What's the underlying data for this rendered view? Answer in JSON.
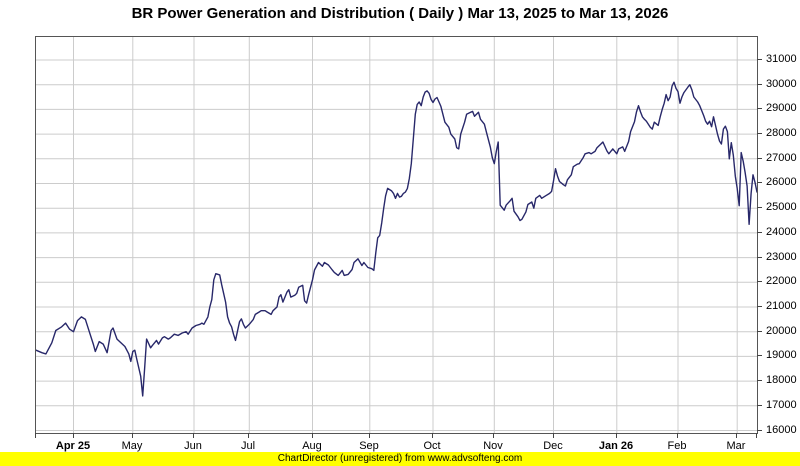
{
  "title": "BR Power Generation and Distribution ( Daily ) Mar 13, 2025 to Mar 13, 2026",
  "footer": {
    "text": "ChartDirector (unregistered) from www.advsofteng.com",
    "background": "#ffff00"
  },
  "chart_data": {
    "type": "line",
    "title": "BR Power Generation and Distribution ( Daily ) Mar 13, 2025 to Mar 13, 2026",
    "xlabel": "",
    "ylabel": "",
    "x_range_days": [
      "Mar 13, 2025",
      "Mar 13, 2026"
    ],
    "grid": true,
    "legend": "none",
    "colors": {
      "line": "#28286a",
      "gridline": "#cccccc",
      "axis": "#444444",
      "plot_background": "#ffffff"
    },
    "y_axis": {
      "position": "right",
      "min": 15900,
      "max": 31930,
      "tick_start": 16000,
      "tick_end": 31000,
      "tick_step": 1000
    },
    "x_axis": {
      "total_days": 365,
      "ticks": [
        {
          "label": "",
          "day": 0,
          "bold": false
        },
        {
          "label": "Apr 25",
          "day": 19,
          "bold": true
        },
        {
          "label": "May",
          "day": 49,
          "bold": false
        },
        {
          "label": "Jun",
          "day": 80,
          "bold": false
        },
        {
          "label": "Jul",
          "day": 108,
          "bold": false
        },
        {
          "label": "Aug",
          "day": 140,
          "bold": false
        },
        {
          "label": "Sep",
          "day": 169,
          "bold": false
        },
        {
          "label": "Oct",
          "day": 201,
          "bold": false
        },
        {
          "label": "Nov",
          "day": 232,
          "bold": false
        },
        {
          "label": "Dec",
          "day": 262,
          "bold": false
        },
        {
          "label": "Jan 26",
          "day": 294,
          "bold": true
        },
        {
          "label": "Feb",
          "day": 325,
          "bold": false
        },
        {
          "label": "Mar",
          "day": 355,
          "bold": false
        },
        {
          "label": "",
          "day": 365,
          "bold": false
        }
      ]
    },
    "series": [
      {
        "name": "BR Power Generation and Distribution",
        "points": [
          [
            0,
            19250
          ],
          [
            3,
            19150
          ],
          [
            5,
            19100
          ],
          [
            8,
            19550
          ],
          [
            10,
            20050
          ],
          [
            13,
            20200
          ],
          [
            15,
            20350
          ],
          [
            17,
            20100
          ],
          [
            19,
            20000
          ],
          [
            21,
            20450
          ],
          [
            23,
            20600
          ],
          [
            25,
            20500
          ],
          [
            27,
            20000
          ],
          [
            29,
            19500
          ],
          [
            30,
            19200
          ],
          [
            32,
            19600
          ],
          [
            34,
            19500
          ],
          [
            36,
            19150
          ],
          [
            38,
            20050
          ],
          [
            39,
            20150
          ],
          [
            41,
            19700
          ],
          [
            43,
            19550
          ],
          [
            45,
            19400
          ],
          [
            47,
            19100
          ],
          [
            48,
            18800
          ],
          [
            49,
            19200
          ],
          [
            50,
            19250
          ],
          [
            51,
            18900
          ],
          [
            53,
            18200
          ],
          [
            54,
            17400
          ],
          [
            55,
            18500
          ],
          [
            56,
            19700
          ],
          [
            58,
            19350
          ],
          [
            59,
            19450
          ],
          [
            61,
            19650
          ],
          [
            62,
            19500
          ],
          [
            64,
            19750
          ],
          [
            65,
            19800
          ],
          [
            67,
            19700
          ],
          [
            68,
            19750
          ],
          [
            70,
            19900
          ],
          [
            72,
            19850
          ],
          [
            74,
            19950
          ],
          [
            76,
            20000
          ],
          [
            77,
            19900
          ],
          [
            79,
            20150
          ],
          [
            81,
            20250
          ],
          [
            83,
            20300
          ],
          [
            84,
            20350
          ],
          [
            85,
            20300
          ],
          [
            87,
            20600
          ],
          [
            88,
            21000
          ],
          [
            89,
            21300
          ],
          [
            90,
            22100
          ],
          [
            91,
            22350
          ],
          [
            93,
            22300
          ],
          [
            94,
            21900
          ],
          [
            96,
            21200
          ],
          [
            97,
            20600
          ],
          [
            98,
            20350
          ],
          [
            99,
            20200
          ],
          [
            100,
            19900
          ],
          [
            101,
            19650
          ],
          [
            103,
            20400
          ],
          [
            104,
            20520
          ],
          [
            105,
            20300
          ],
          [
            106,
            20150
          ],
          [
            108,
            20300
          ],
          [
            110,
            20500
          ],
          [
            111,
            20700
          ],
          [
            113,
            20800
          ],
          [
            114,
            20850
          ],
          [
            116,
            20850
          ],
          [
            117,
            20800
          ],
          [
            119,
            20700
          ],
          [
            120,
            20850
          ],
          [
            122,
            21000
          ],
          [
            123,
            21400
          ],
          [
            124,
            21500
          ],
          [
            125,
            21200
          ],
          [
            127,
            21600
          ],
          [
            128,
            21700
          ],
          [
            129,
            21400
          ],
          [
            131,
            21480
          ],
          [
            132,
            21550
          ],
          [
            133,
            21800
          ],
          [
            135,
            21880
          ],
          [
            136,
            21250
          ],
          [
            137,
            21160
          ],
          [
            138,
            21500
          ],
          [
            140,
            22100
          ],
          [
            141,
            22500
          ],
          [
            143,
            22800
          ],
          [
            145,
            22650
          ],
          [
            146,
            22800
          ],
          [
            148,
            22700
          ],
          [
            150,
            22500
          ],
          [
            151,
            22400
          ],
          [
            153,
            22280
          ],
          [
            155,
            22480
          ],
          [
            156,
            22280
          ],
          [
            158,
            22320
          ],
          [
            160,
            22520
          ],
          [
            161,
            22800
          ],
          [
            163,
            22950
          ],
          [
            165,
            22680
          ],
          [
            166,
            22800
          ],
          [
            168,
            22600
          ],
          [
            170,
            22550
          ],
          [
            171,
            22480
          ],
          [
            172,
            23200
          ],
          [
            173,
            23800
          ],
          [
            174,
            23900
          ],
          [
            175,
            24400
          ],
          [
            176,
            25000
          ],
          [
            177,
            25500
          ],
          [
            178,
            25800
          ],
          [
            180,
            25700
          ],
          [
            181,
            25600
          ],
          [
            182,
            25400
          ],
          [
            183,
            25600
          ],
          [
            184,
            25450
          ],
          [
            185,
            25480
          ],
          [
            186,
            25600
          ],
          [
            187,
            25650
          ],
          [
            188,
            25800
          ],
          [
            189,
            26200
          ],
          [
            190,
            26800
          ],
          [
            191,
            27800
          ],
          [
            192,
            28800
          ],
          [
            193,
            29200
          ],
          [
            194,
            29300
          ],
          [
            195,
            29150
          ],
          [
            196,
            29500
          ],
          [
            197,
            29700
          ],
          [
            198,
            29750
          ],
          [
            199,
            29650
          ],
          [
            200,
            29400
          ],
          [
            201,
            29280
          ],
          [
            202,
            29420
          ],
          [
            203,
            29480
          ],
          [
            204,
            29300
          ],
          [
            205,
            29120
          ],
          [
            207,
            28480
          ],
          [
            209,
            28280
          ],
          [
            210,
            28000
          ],
          [
            212,
            27800
          ],
          [
            213,
            27450
          ],
          [
            214,
            27400
          ],
          [
            215,
            28000
          ],
          [
            217,
            28480
          ],
          [
            218,
            28800
          ],
          [
            220,
            28880
          ],
          [
            221,
            28920
          ],
          [
            222,
            28720
          ],
          [
            224,
            28880
          ],
          [
            225,
            28600
          ],
          [
            227,
            28400
          ],
          [
            228,
            28080
          ],
          [
            230,
            27480
          ],
          [
            231,
            27050
          ],
          [
            232,
            26800
          ],
          [
            233,
            27300
          ],
          [
            234,
            27680
          ],
          [
            235,
            25120
          ],
          [
            237,
            24920
          ],
          [
            238,
            25120
          ],
          [
            240,
            25300
          ],
          [
            241,
            25400
          ],
          [
            242,
            24880
          ],
          [
            244,
            24650
          ],
          [
            245,
            24500
          ],
          [
            246,
            24550
          ],
          [
            248,
            24850
          ],
          [
            249,
            25150
          ],
          [
            251,
            25250
          ],
          [
            252,
            25000
          ],
          [
            253,
            25400
          ],
          [
            255,
            25520
          ],
          [
            256,
            25400
          ],
          [
            258,
            25500
          ],
          [
            260,
            25600
          ],
          [
            261,
            25680
          ],
          [
            262,
            26100
          ],
          [
            263,
            26600
          ],
          [
            264,
            26300
          ],
          [
            265,
            26080
          ],
          [
            267,
            25950
          ],
          [
            268,
            25900
          ],
          [
            269,
            26150
          ],
          [
            271,
            26350
          ],
          [
            272,
            26680
          ],
          [
            274,
            26780
          ],
          [
            275,
            26800
          ],
          [
            277,
            27050
          ],
          [
            278,
            27200
          ],
          [
            280,
            27250
          ],
          [
            281,
            27200
          ],
          [
            283,
            27300
          ],
          [
            284,
            27450
          ],
          [
            286,
            27600
          ],
          [
            287,
            27680
          ],
          [
            289,
            27320
          ],
          [
            290,
            27200
          ],
          [
            292,
            27400
          ],
          [
            294,
            27200
          ],
          [
            295,
            27400
          ],
          [
            297,
            27480
          ],
          [
            298,
            27300
          ],
          [
            300,
            27700
          ],
          [
            301,
            28100
          ],
          [
            303,
            28500
          ],
          [
            304,
            28900
          ],
          [
            305,
            29150
          ],
          [
            306,
            28900
          ],
          [
            307,
            28700
          ],
          [
            308,
            28600
          ],
          [
            309,
            28520
          ],
          [
            311,
            28280
          ],
          [
            312,
            28200
          ],
          [
            313,
            28480
          ],
          [
            315,
            28350
          ],
          [
            316,
            28700
          ],
          [
            317,
            29000
          ],
          [
            318,
            29250
          ],
          [
            319,
            29600
          ],
          [
            320,
            29350
          ],
          [
            321,
            29500
          ],
          [
            322,
            29950
          ],
          [
            323,
            30100
          ],
          [
            324,
            29850
          ],
          [
            325,
            29720
          ],
          [
            326,
            29250
          ],
          [
            327,
            29500
          ],
          [
            328,
            29680
          ],
          [
            330,
            29900
          ],
          [
            331,
            30000
          ],
          [
            332,
            29800
          ],
          [
            333,
            29500
          ],
          [
            335,
            29300
          ],
          [
            336,
            29150
          ],
          [
            337,
            28950
          ],
          [
            338,
            28750
          ],
          [
            339,
            28520
          ],
          [
            340,
            28400
          ],
          [
            341,
            28520
          ],
          [
            342,
            28300
          ],
          [
            343,
            28700
          ],
          [
            344,
            28350
          ],
          [
            345,
            28000
          ],
          [
            346,
            27720
          ],
          [
            347,
            27600
          ],
          [
            348,
            28200
          ],
          [
            349,
            28320
          ],
          [
            350,
            28100
          ],
          [
            351,
            27000
          ],
          [
            352,
            27650
          ],
          [
            353,
            27150
          ],
          [
            354,
            26300
          ],
          [
            355,
            25800
          ],
          [
            356,
            25100
          ],
          [
            357,
            27250
          ],
          [
            358,
            26900
          ],
          [
            359,
            26450
          ],
          [
            360,
            25900
          ],
          [
            361,
            24350
          ],
          [
            362,
            25600
          ],
          [
            363,
            26350
          ],
          [
            364,
            26050
          ],
          [
            365,
            25650
          ]
        ]
      }
    ]
  }
}
